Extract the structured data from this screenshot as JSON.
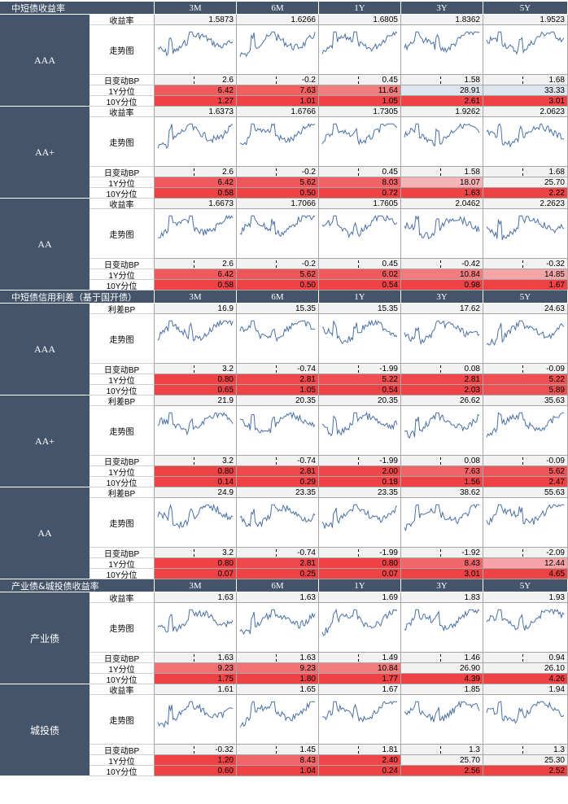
{
  "columns": [
    "3M",
    "6M",
    "1Y",
    "3Y",
    "5Y"
  ],
  "sections": [
    {
      "title": "中短债收益率",
      "groups": [
        {
          "name": "AAA",
          "rows": [
            {
              "label": "收益率",
              "values": [
                "1.5873",
                "1.6266",
                "1.6805",
                "1.8362",
                "1.9523"
              ]
            },
            {
              "label": "走势图",
              "spark": true
            },
            {
              "label": "日变动BP",
              "values": [
                "2.6",
                "-0.2",
                "0.45",
                "1.58",
                "1.68"
              ],
              "tick": true
            },
            {
              "label": "1Y分位",
              "values": [
                "6.42",
                "7.63",
                "11.64",
                "28.91",
                "33.33"
              ],
              "colors": [
                "#f05a5d",
                "#f1605f",
                "#f27d7e",
                "#dfe5ef",
                "#dfe5ef"
              ]
            },
            {
              "label": "10Y分位",
              "values": [
                "1.27",
                "1.01",
                "1.05",
                "2.61",
                "3.01"
              ],
              "colors": [
                "#ee4245",
                "#ee4245",
                "#ee4245",
                "#ee4245",
                "#ee4245"
              ]
            }
          ]
        },
        {
          "name": "AA+",
          "rows": [
            {
              "label": "收益率",
              "values": [
                "1.6373",
                "1.6766",
                "1.7305",
                "1.9262",
                "2.0623"
              ]
            },
            {
              "label": "走势图",
              "spark": true
            },
            {
              "label": "日变动BP",
              "values": [
                "2.6",
                "-0.2",
                "0.45",
                "1.58",
                "1.68"
              ],
              "tick": true
            },
            {
              "label": "1Y分位",
              "values": [
                "6.42",
                "5.62",
                "8.03",
                "18.07",
                "25.70"
              ],
              "colors": [
                "#f05a5d",
                "#ef5659",
                "#f16366",
                "#f5b3b6",
                "#f2f2f2"
              ]
            },
            {
              "label": "10Y分位",
              "values": [
                "0.58",
                "0.50",
                "0.72",
                "1.63",
                "2.22"
              ],
              "colors": [
                "#ee4245",
                "#ee4245",
                "#ee4245",
                "#ee4245",
                "#ee4245"
              ]
            }
          ]
        },
        {
          "name": "AA",
          "rows": [
            {
              "label": "收益率",
              "values": [
                "1.6673",
                "1.7066",
                "1.7605",
                "2.0462",
                "2.2623"
              ]
            },
            {
              "label": "走势图",
              "spark": true
            },
            {
              "label": "日变动BP",
              "values": [
                "2.6",
                "-0.2",
                "0.45",
                "-0.42",
                "-0.32"
              ],
              "tick": true
            },
            {
              "label": "1Y分位",
              "values": [
                "6.42",
                "5.62",
                "6.02",
                "10.84",
                "14.85"
              ],
              "colors": [
                "#f05a5d",
                "#ef5659",
                "#f05a5d",
                "#f27c7e",
                "#f5a5a8"
              ]
            },
            {
              "label": "10Y分位",
              "values": [
                "0.58",
                "0.50",
                "0.54",
                "0.98",
                "1.67"
              ],
              "colors": [
                "#ee4245",
                "#ee4245",
                "#ee4245",
                "#ee4245",
                "#ee4245"
              ]
            }
          ]
        }
      ]
    },
    {
      "title": "中短债信用利差（基于国开债）",
      "groups": [
        {
          "name": "AAA",
          "rows": [
            {
              "label": "利差BP",
              "values": [
                "16.9",
                "15.35",
                "15.35",
                "17.62",
                "24.63"
              ]
            },
            {
              "label": "走势图",
              "spark": true
            },
            {
              "label": "日变动BP",
              "values": [
                "3.2",
                "-0.74",
                "-1.99",
                "0.08",
                "-0.09"
              ],
              "tick": true
            },
            {
              "label": "1Y分位",
              "values": [
                "0.80",
                "2.81",
                "5.22",
                "2.81",
                "5.22"
              ],
              "colors": [
                "#ee4245",
                "#ef484b",
                "#ef5053",
                "#ef484b",
                "#ef5053"
              ]
            },
            {
              "label": "10Y分位",
              "values": [
                "0.65",
                "1.05",
                "0.54",
                "2.03",
                "5.89"
              ],
              "colors": [
                "#ee4245",
                "#ee4245",
                "#ee4245",
                "#ee4245",
                "#ef5053"
              ]
            }
          ]
        },
        {
          "name": "AA+",
          "rows": [
            {
              "label": "利差BP",
              "values": [
                "21.9",
                "20.35",
                "20.35",
                "26.62",
                "35.63"
              ]
            },
            {
              "label": "走势图",
              "spark": true
            },
            {
              "label": "日变动BP",
              "values": [
                "3.2",
                "-0.74",
                "-1.99",
                "0.08",
                "-0.09"
              ],
              "tick": true
            },
            {
              "label": "1Y分位",
              "values": [
                "0.80",
                "2.81",
                "2.00",
                "7.63",
                "5.62"
              ],
              "colors": [
                "#ee4245",
                "#ef484b",
                "#ef4649",
                "#f16366",
                "#ef5659"
              ]
            },
            {
              "label": "10Y分位",
              "values": [
                "0.14",
                "0.29",
                "0.18",
                "1.56",
                "2.47"
              ],
              "colors": [
                "#ee4245",
                "#ee4245",
                "#ee4245",
                "#ee4245",
                "#ee4245"
              ]
            }
          ]
        },
        {
          "name": "AA",
          "rows": [
            {
              "label": "利差BP",
              "values": [
                "24.9",
                "23.35",
                "23.35",
                "38.62",
                "55.63"
              ]
            },
            {
              "label": "走势图",
              "spark": true
            },
            {
              "label": "日变动BP",
              "values": [
                "3.2",
                "-0.74",
                "-1.99",
                "-1.92",
                "-2.09"
              ],
              "tick": true
            },
            {
              "label": "1Y分位",
              "values": [
                "0.80",
                "2.81",
                "0.80",
                "8.43",
                "12.44"
              ],
              "colors": [
                "#ee4245",
                "#ef484b",
                "#ee4245",
                "#f16669",
                "#f5a3a6"
              ]
            },
            {
              "label": "10Y分位",
              "values": [
                "0.07",
                "0.25",
                "0.07",
                "3.01",
                "4.65"
              ],
              "colors": [
                "#ee4245",
                "#ee4245",
                "#ee4245",
                "#ee4245",
                "#ee4245"
              ]
            }
          ]
        }
      ]
    },
    {
      "title": "产业债&城投债收益率",
      "groups": [
        {
          "name": "产业债",
          "rows": [
            {
              "label": "收益率",
              "values": [
                "1.63",
                "1.63",
                "1.69",
                "1.83",
                "1.93"
              ]
            },
            {
              "label": "走势图",
              "spark": true
            },
            {
              "label": "日变动BP",
              "values": [
                "1.63",
                "1.63",
                "1.49",
                "1.46",
                "0.94"
              ],
              "tick": true
            },
            {
              "label": "1Y分位",
              "values": [
                "9.23",
                "9.23",
                "10.84",
                "26.90",
                "26.10"
              ],
              "colors": [
                "#f27174",
                "#f27174",
                "#f27c7e",
                "#f2f2f2",
                "#f2f2f2"
              ]
            },
            {
              "label": "10Y分位",
              "values": [
                "1.75",
                "1.80",
                "1.77",
                "4.39",
                "4.26"
              ],
              "colors": [
                "#ee4245",
                "#ee4245",
                "#ee4245",
                "#ee4245",
                "#ee4245"
              ]
            }
          ]
        },
        {
          "name": "城投债",
          "rows": [
            {
              "label": "收益率",
              "values": [
                "1.61",
                "1.65",
                "1.67",
                "1.85",
                "1.94"
              ]
            },
            {
              "label": "走势图",
              "spark": true
            },
            {
              "label": "日变动BP",
              "values": [
                "-0.32",
                "1.45",
                "1.81",
                "1.3",
                "1.3"
              ],
              "tick": true
            },
            {
              "label": "1Y分位",
              "values": [
                "1.20",
                "8.43",
                "2.40",
                "25.70",
                "25.30"
              ],
              "colors": [
                "#ee4245",
                "#f16669",
                "#ef4649",
                "#f2f2f2",
                "#f2f2f2"
              ]
            },
            {
              "label": "10Y分位",
              "values": [
                "0.60",
                "1.04",
                "0.24",
                "2.56",
                "2.52"
              ],
              "colors": [
                "#ee4245",
                "#ee4245",
                "#ee4245",
                "#ee4245",
                "#ee4245"
              ]
            }
          ]
        }
      ]
    }
  ],
  "colors": {
    "header_bg": "#44546a",
    "value_bg": "#f2f2f2",
    "spark_line": "#4a6fa5"
  }
}
